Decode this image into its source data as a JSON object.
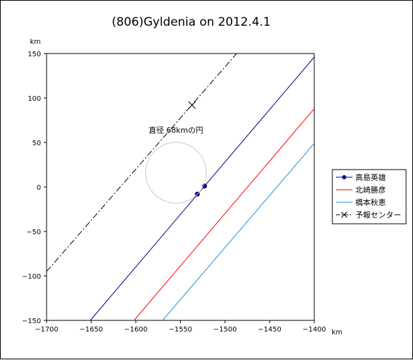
{
  "chart_data": {
    "type": "line",
    "title": "(806)Gyldenia on 2012.4.1",
    "xlabel": "km",
    "ylabel": "km",
    "xlim": [
      -1700,
      -1400
    ],
    "ylim": [
      -150,
      150
    ],
    "xticks": [
      -1700,
      -1650,
      -1600,
      -1550,
      -1500,
      -1450,
      -1400
    ],
    "yticks": [
      -150,
      -100,
      -50,
      0,
      50,
      100,
      150
    ],
    "xtick_labels": [
      "−1700",
      "−1650",
      "−1600",
      "−1550",
      "−1500",
      "−1450",
      "−1400"
    ],
    "ytick_labels": [
      "−150",
      "−100",
      "−50",
      "0",
      "50",
      "100",
      "150"
    ],
    "grid": false,
    "legend_position": "right",
    "series": [
      {
        "name": "高島英雄",
        "color": "#000080",
        "marker": "dot",
        "line": "solid",
        "x": [
          -1651,
          -1400
        ],
        "y": [
          -150,
          146
        ],
        "points_x": [
          -1531,
          -1523
        ],
        "points_y": [
          -8,
          1
        ]
      },
      {
        "name": "北崎勝彦",
        "color": "#ff0000",
        "marker": "none",
        "line": "solid",
        "x": [
          -1602,
          -1400
        ],
        "y": [
          -150,
          88
        ]
      },
      {
        "name": "橋本秋恵",
        "color": "#1e90d0",
        "marker": "none",
        "line": "solid",
        "x": [
          -1570,
          -1400
        ],
        "y": [
          -150,
          49
        ]
      },
      {
        "name": "予報センター",
        "color": "#000000",
        "marker": "cross",
        "line": "dashdot",
        "x": [
          -1700,
          -1487
        ],
        "y": [
          -95,
          150
        ],
        "points_x": [
          -1537
        ],
        "points_y": [
          92
        ]
      }
    ],
    "annotations": [
      {
        "text": "直径 68kmの円",
        "x": -1555,
        "y": 61,
        "circle": {
          "cx": -1555,
          "cy": 16,
          "r": 34
        }
      }
    ]
  }
}
